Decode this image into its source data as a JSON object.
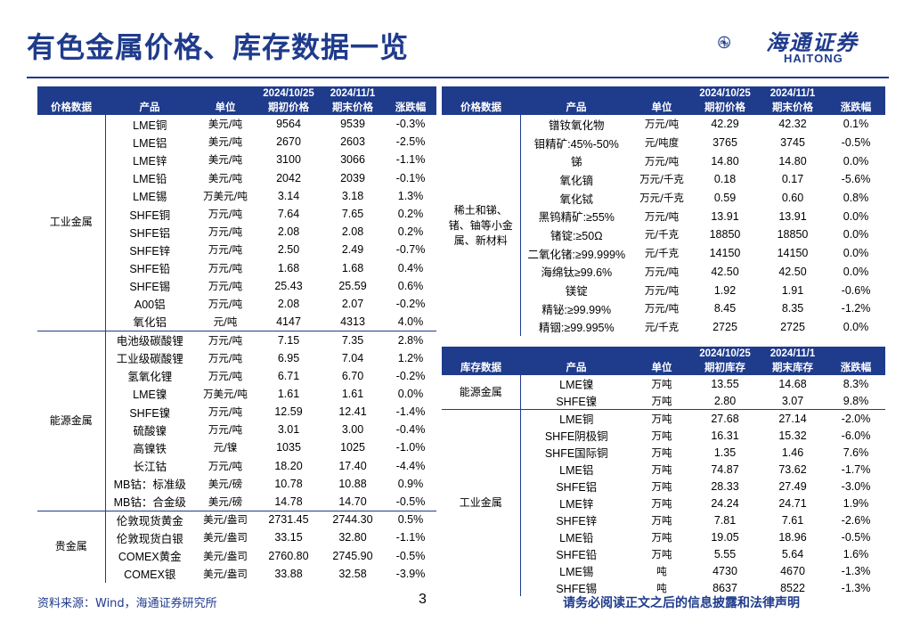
{
  "header": {
    "title": "有色金属价格、库存数据一览",
    "logo_cn": "海通证券",
    "logo_en": "HAITONG"
  },
  "price_table_left": {
    "headers": [
      "价格数据",
      "产品",
      "单位",
      "2024/10/25\n期初价格",
      "2024/11/1\n期末价格",
      "涨跌幅"
    ],
    "header_top": [
      "",
      "",
      "",
      "2024/10/25",
      "2024/11/1",
      ""
    ],
    "header_bottom": [
      "价格数据",
      "产品",
      "单位",
      "期初价格",
      "期末价格",
      "涨跌幅"
    ],
    "groups": [
      {
        "name": "工业金属",
        "rows": [
          [
            "LME铜",
            "美元/吨",
            "9564",
            "9539",
            "-0.3%"
          ],
          [
            "LME铝",
            "美元/吨",
            "2670",
            "2603",
            "-2.5%"
          ],
          [
            "LME锌",
            "美元/吨",
            "3100",
            "3066",
            "-1.1%"
          ],
          [
            "LME铅",
            "美元/吨",
            "2042",
            "2039",
            "-0.1%"
          ],
          [
            "LME锡",
            "万美元/吨",
            "3.14",
            "3.18",
            "1.3%"
          ],
          [
            "SHFE铜",
            "万元/吨",
            "7.64",
            "7.65",
            "0.2%"
          ],
          [
            "SHFE铝",
            "万元/吨",
            "2.08",
            "2.08",
            "0.2%"
          ],
          [
            "SHFE锌",
            "万元/吨",
            "2.50",
            "2.49",
            "-0.7%"
          ],
          [
            "SHFE铅",
            "万元/吨",
            "1.68",
            "1.68",
            "0.4%"
          ],
          [
            "SHFE锡",
            "万元/吨",
            "25.43",
            "25.59",
            "0.6%"
          ],
          [
            "A00铝",
            "万元/吨",
            "2.08",
            "2.07",
            "-0.2%"
          ],
          [
            "氧化铝",
            "元/吨",
            "4147",
            "4313",
            "4.0%"
          ]
        ]
      },
      {
        "name": "能源金属",
        "rows": [
          [
            "电池级碳酸锂",
            "万元/吨",
            "7.15",
            "7.35",
            "2.8%"
          ],
          [
            "工业级碳酸锂",
            "万元/吨",
            "6.95",
            "7.04",
            "1.2%"
          ],
          [
            "氢氧化锂",
            "万元/吨",
            "6.71",
            "6.70",
            "-0.2%"
          ],
          [
            "LME镍",
            "万美元/吨",
            "1.61",
            "1.61",
            "0.0%"
          ],
          [
            "SHFE镍",
            "万元/吨",
            "12.59",
            "12.41",
            "-1.4%"
          ],
          [
            "硫酸镍",
            "万元/吨",
            "3.01",
            "3.00",
            "-0.4%"
          ],
          [
            "高镍铁",
            "元/镍",
            "1035",
            "1025",
            "-1.0%"
          ],
          [
            "长江钴",
            "万元/吨",
            "18.20",
            "17.40",
            "-4.4%"
          ],
          [
            "MB钴：标准级",
            "美元/磅",
            "10.78",
            "10.88",
            "0.9%"
          ],
          [
            "MB钴：合金级",
            "美元/磅",
            "14.78",
            "14.70",
            "-0.5%"
          ]
        ]
      },
      {
        "name": "贵金属",
        "rows": [
          [
            "伦敦现货黄金",
            "美元/盎司",
            "2731.45",
            "2744.30",
            "0.5%"
          ],
          [
            "伦敦现货白银",
            "美元/盎司",
            "33.15",
            "32.80",
            "-1.1%"
          ],
          [
            "COMEX黄金",
            "美元/盎司",
            "2760.80",
            "2745.90",
            "-0.5%"
          ],
          [
            "COMEX银",
            "美元/盎司",
            "33.88",
            "32.58",
            "-3.9%"
          ]
        ]
      }
    ]
  },
  "price_table_right": {
    "header_top": [
      "",
      "",
      "",
      "2024/10/25",
      "2024/11/1",
      ""
    ],
    "header_bottom": [
      "价格数据",
      "产品",
      "单位",
      "期初价格",
      "期末价格",
      "涨跌幅"
    ],
    "group_name": "稀土和锑、锗、铀等小金属、新材料",
    "rows": [
      [
        "镨钕氧化物",
        "万元/吨",
        "42.29",
        "42.32",
        "0.1%"
      ],
      [
        "钼精矿:45%-50%",
        "元/吨度",
        "3765",
        "3745",
        "-0.5%"
      ],
      [
        "锑",
        "万元/吨",
        "14.80",
        "14.80",
        "0.0%"
      ],
      [
        "氧化镝",
        "万元/千克",
        "0.18",
        "0.17",
        "-5.6%"
      ],
      [
        "氧化铽",
        "万元/千克",
        "0.59",
        "0.60",
        "0.8%"
      ],
      [
        "黑钨精矿:≥55%",
        "万元/吨",
        "13.91",
        "13.91",
        "0.0%"
      ],
      [
        "锗锭:≥50Ω",
        "元/千克",
        "18850",
        "18850",
        "0.0%"
      ],
      [
        "二氧化锗:≥99.999%",
        "元/千克",
        "14150",
        "14150",
        "0.0%"
      ],
      [
        "海绵钛≥99.6%",
        "万元/吨",
        "42.50",
        "42.50",
        "0.0%"
      ],
      [
        "镁锭",
        "万元/吨",
        "1.92",
        "1.91",
        "-0.6%"
      ],
      [
        "精铋:≥99.99%",
        "万元/吨",
        "8.45",
        "8.35",
        "-1.2%"
      ],
      [
        "精铟:≥99.995%",
        "元/千克",
        "2725",
        "2725",
        "0.0%"
      ]
    ]
  },
  "stock_table": {
    "header_top": [
      "",
      "",
      "",
      "2024/10/25",
      "2024/11/1",
      ""
    ],
    "header_bottom": [
      "库存数据",
      "产品",
      "单位",
      "期初库存",
      "期末库存",
      "涨跌幅"
    ],
    "groups": [
      {
        "name": "能源金属",
        "rows": [
          [
            "LME镍",
            "万吨",
            "13.55",
            "14.68",
            "8.3%"
          ],
          [
            "SHFE镍",
            "万吨",
            "2.80",
            "3.07",
            "9.8%"
          ]
        ]
      },
      {
        "name": "工业金属",
        "rows": [
          [
            "LME铜",
            "万吨",
            "27.68",
            "27.14",
            "-2.0%"
          ],
          [
            "SHFE阴极铜",
            "万吨",
            "16.31",
            "15.32",
            "-6.0%"
          ],
          [
            "SHFE国际铜",
            "万吨",
            "1.35",
            "1.46",
            "7.6%"
          ],
          [
            "LME铝",
            "万吨",
            "74.87",
            "73.62",
            "-1.7%"
          ],
          [
            "SHFE铝",
            "万吨",
            "28.33",
            "27.49",
            "-3.0%"
          ],
          [
            "LME锌",
            "万吨",
            "24.24",
            "24.71",
            "1.9%"
          ],
          [
            "SHFE锌",
            "万吨",
            "7.81",
            "7.61",
            "-2.6%"
          ],
          [
            "LME铅",
            "万吨",
            "19.05",
            "18.96",
            "-0.5%"
          ],
          [
            "SHFE铅",
            "万吨",
            "5.55",
            "5.64",
            "1.6%"
          ],
          [
            "LME锡",
            "吨",
            "4730",
            "4670",
            "-1.3%"
          ],
          [
            "SHFE锡",
            "吨",
            "8637",
            "8522",
            "-1.3%"
          ]
        ]
      }
    ]
  },
  "footer": {
    "source": "资料来源：Wind，海通证券研究所",
    "page": "3",
    "disclaimer": "请务必阅读正文之后的信息披露和法律声明"
  },
  "colors": {
    "brand": "#1f3b8c"
  }
}
